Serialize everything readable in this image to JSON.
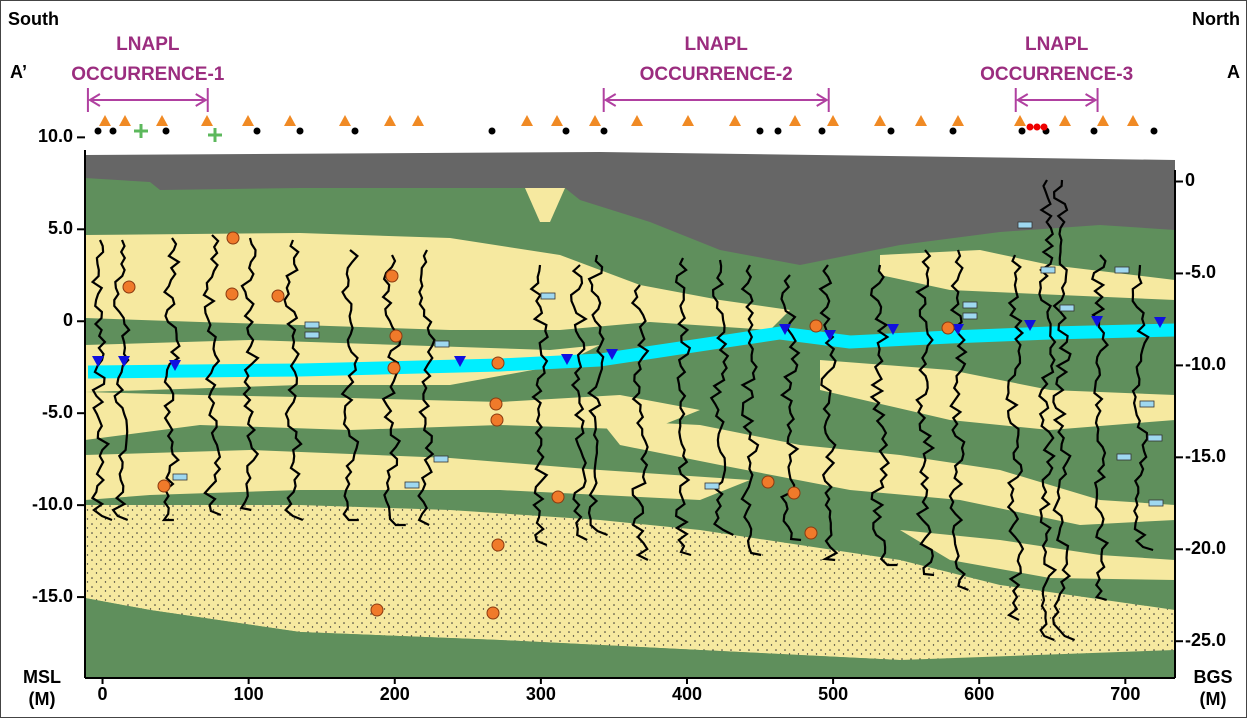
{
  "chart_data": {
    "type": "cross-section",
    "left_label": "South",
    "right_label": "North",
    "left_section": "A’",
    "right_section": "A",
    "occurrences": [
      {
        "label": [
          "LNAPL",
          "OCCURRENCE-1"
        ],
        "range": [
          -10,
          72
        ]
      },
      {
        "label": [
          "LNAPL",
          "OCCURRENCE-2"
        ],
        "range": [
          343,
          497
        ]
      },
      {
        "label": [
          "LNAPL",
          "OCCURRENCE-3"
        ],
        "range": [
          625,
          681
        ]
      }
    ],
    "y_axis_label": [
      "MSL",
      "(M)"
    ],
    "y2_axis_label": [
      "BGS",
      "(M)"
    ],
    "xlim": [
      -12,
      734
    ],
    "xticks": [
      0,
      100,
      200,
      300,
      400,
      500,
      600,
      700
    ],
    "ylim": [
      -19.4,
      10.4
    ],
    "yticks": [
      {
        "value": 10,
        "label": "10.0"
      },
      {
        "value": 5,
        "label": "5.0"
      },
      0,
      {
        "value": -5,
        "label": "-5.0"
      },
      {
        "value": -10,
        "label": "-10.0"
      },
      {
        "value": -15,
        "label": "-15.0"
      }
    ],
    "y2lim": [
      -27.0,
      2.8
    ],
    "y2ticks": [
      0,
      {
        "value": -5,
        "label": "-5.0"
      },
      {
        "value": -10,
        "label": "-10.0"
      },
      {
        "value": -15,
        "label": "-15.0"
      },
      {
        "value": -20,
        "label": "-20.0"
      },
      {
        "value": -25,
        "label": "-25.0"
      }
    ]
  }
}
